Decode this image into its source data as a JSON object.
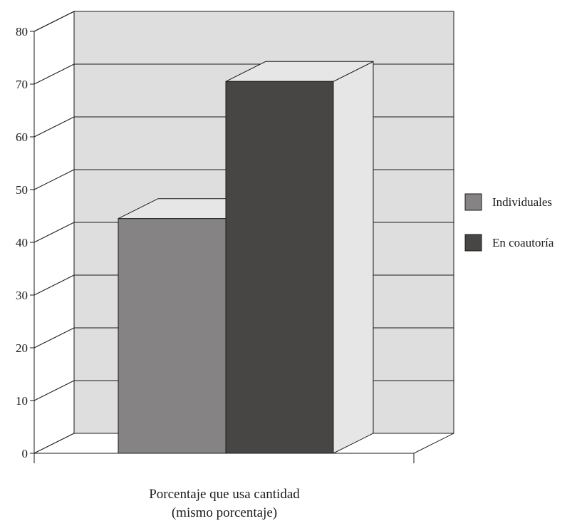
{
  "chart_data": {
    "type": "bar",
    "style": "3d",
    "xlabel_lines": [
      "Porcentaje que usa cantidad",
      "(mismo porcentaje)"
    ],
    "ylabel": "",
    "ylim": [
      0,
      80
    ],
    "yticks": [
      0,
      10,
      20,
      30,
      40,
      50,
      60,
      70,
      80
    ],
    "grid": true,
    "legend_position": "right",
    "categories": [
      ""
    ],
    "series": [
      {
        "name": "Individuales",
        "values": [
          44.5
        ],
        "color": "#858383"
      },
      {
        "name": "En coautoría",
        "values": [
          70.5
        ],
        "color": "#484645"
      }
    ],
    "colors": {
      "wall": "#dedede",
      "floor": "#ffffff",
      "line": "#1a1a1a"
    }
  }
}
